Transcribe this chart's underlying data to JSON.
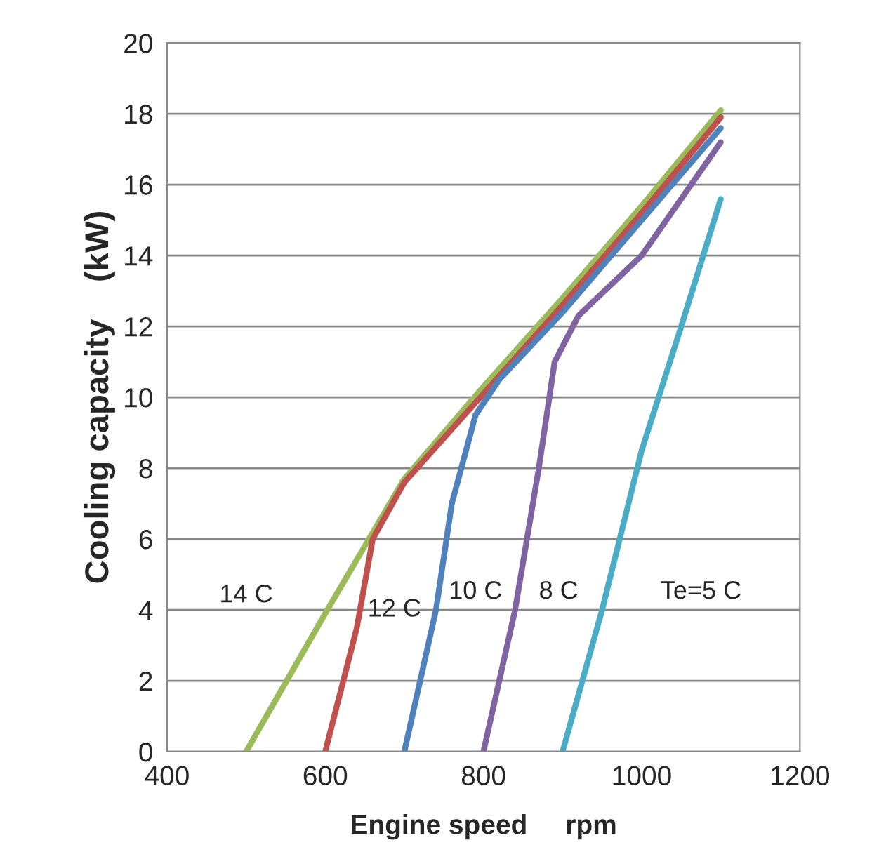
{
  "chart_data": {
    "type": "line",
    "xlabel": "Engine speed     rpm",
    "ylabel": "Cooling capacity    (kW)",
    "series": [
      {
        "name": "14 C",
        "color": "#9bbb59",
        "x": [
          500,
          600,
          700,
          800,
          900,
          1000,
          1100
        ],
        "values": [
          0,
          3.9,
          7.7,
          10.3,
          12.8,
          15.4,
          18.1
        ]
      },
      {
        "name": "12 C",
        "color": "#c0504d",
        "x": [
          600,
          640,
          660,
          700,
          800,
          900,
          1000,
          1100
        ],
        "values": [
          0,
          3.5,
          6,
          7.6,
          10.1,
          12.6,
          15.2,
          17.9
        ]
      },
      {
        "name": "10 C",
        "color": "#4f81bd",
        "x": [
          700,
          740,
          760,
          790,
          820,
          900,
          1000,
          1100
        ],
        "values": [
          0,
          4,
          7,
          9.5,
          10.5,
          12.4,
          15,
          17.6
        ]
      },
      {
        "name": "8 C",
        "color": "#8064a2",
        "x": [
          800,
          840,
          870,
          890,
          920,
          1000,
          1100
        ],
        "values": [
          0,
          4,
          8,
          11,
          12.3,
          14,
          17.2
        ]
      },
      {
        "name": "Te=5 C",
        "color": "#4bacc6",
        "x": [
          900,
          950,
          1000,
          1050,
          1100
        ],
        "values": [
          0,
          4,
          8.5,
          12,
          15.6
        ]
      }
    ],
    "xlim": [
      400,
      1200
    ],
    "xticks": [
      400,
      600,
      800,
      1000,
      1200
    ],
    "ylim": [
      0,
      20
    ],
    "yticks": [
      0,
      2,
      4,
      6,
      8,
      10,
      12,
      14,
      16,
      18,
      20
    ],
    "grid": "y",
    "line_style": "solid",
    "marker": "none"
  }
}
